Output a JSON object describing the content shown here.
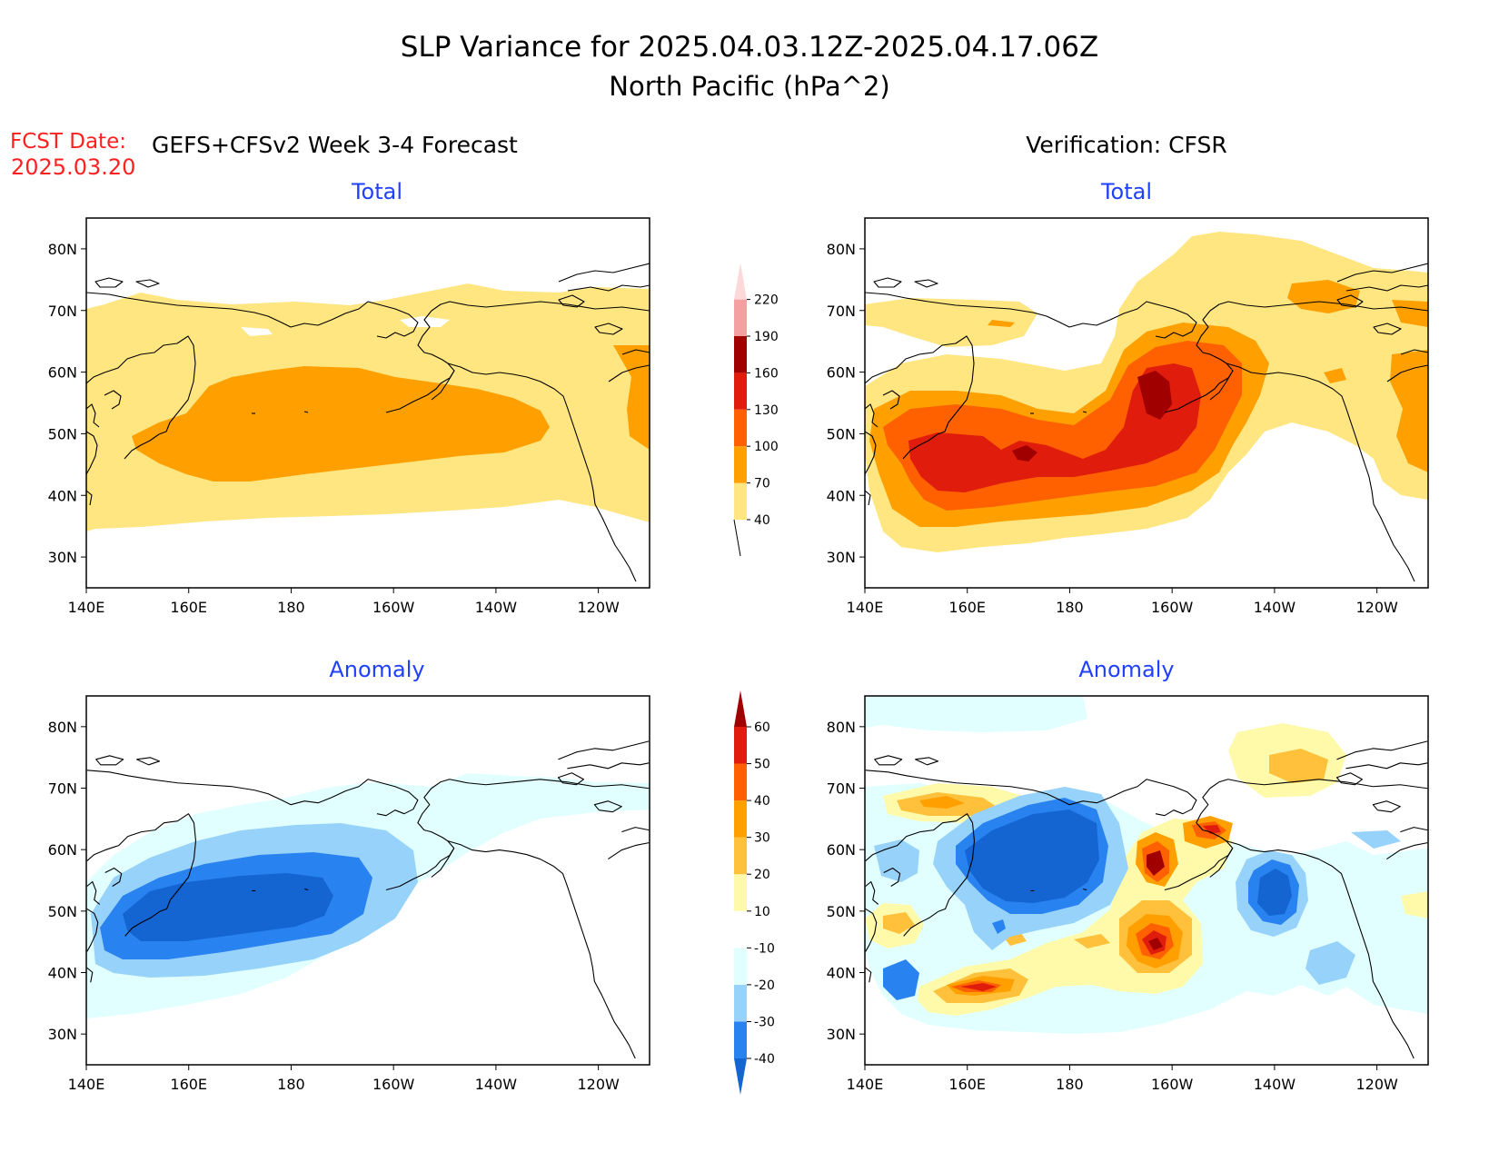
{
  "header": {
    "title": "SLP Variance for 2025.04.03.12Z-2025.04.17.06Z",
    "subtitle": "North Pacific (hPa^2)",
    "fcst_label": "FCST Date:",
    "fcst_date": "2025.03.20",
    "forecast_heading": "GEFS+CFSv2 Week 3-4 Forecast",
    "verification_heading": "Verification: CFSR"
  },
  "panels": {
    "forecast_total_title": "Total",
    "verification_total_title": "Total",
    "forecast_anomaly_title": "Anomaly",
    "verification_anomaly_title": "Anomaly"
  },
  "axes": {
    "lat_labels": [
      "80N",
      "70N",
      "60N",
      "50N",
      "40N",
      "30N"
    ],
    "lon_labels": [
      "140E",
      "160E",
      "180",
      "160W",
      "140W",
      "120W"
    ]
  },
  "colorbars": {
    "total": {
      "labels": [
        "40",
        "70",
        "100",
        "130",
        "160",
        "190",
        "220"
      ],
      "colors": [
        "#ffe680",
        "#ffa000",
        "#ff6000",
        "#e01c0c",
        "#a00000",
        "#f5a0a0",
        "#fdd8d8"
      ]
    },
    "anomaly": {
      "labels": [
        "-40",
        "-30",
        "-20",
        "-10",
        "10",
        "20",
        "30",
        "40",
        "50",
        "60"
      ],
      "colors": [
        "#1464d2",
        "#2882f0",
        "#96d2fa",
        "#e1ffff",
        "#ffffff",
        "#fffaaa",
        "#ffc03c",
        "#ffa000",
        "#ff6000",
        "#e01c0c",
        "#a00000"
      ]
    }
  }
}
